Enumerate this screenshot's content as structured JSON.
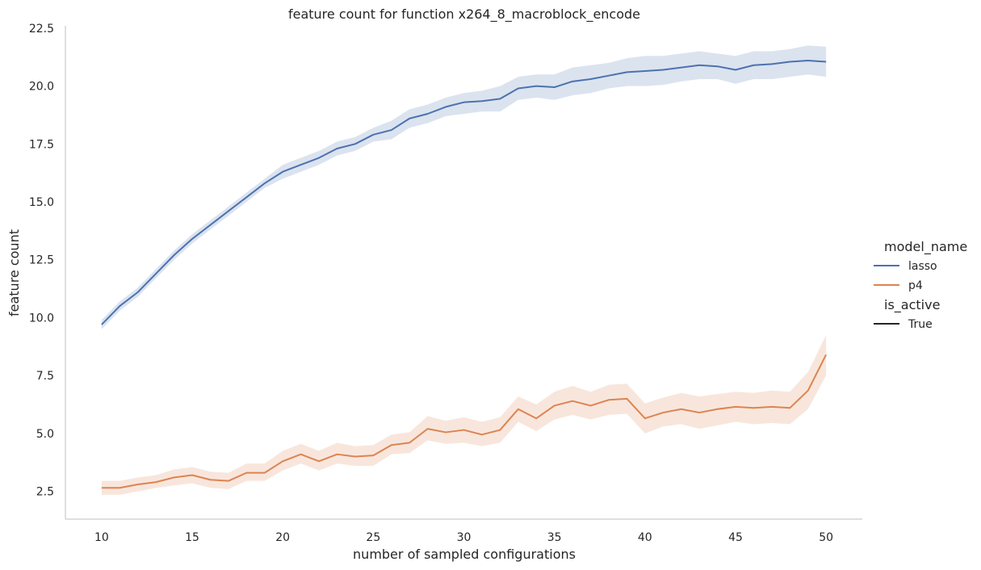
{
  "chart_data": {
    "type": "line",
    "title": "feature count for function x264_8_macroblock_encode",
    "xlabel": "number of sampled configurations",
    "ylabel": "feature count",
    "xlim": [
      8.0,
      52.0
    ],
    "ylim": [
      1.3,
      22.6
    ],
    "xticks": [
      10,
      15,
      20,
      25,
      30,
      35,
      40,
      45,
      50
    ],
    "yticks": [
      2.5,
      5.0,
      7.5,
      10.0,
      12.5,
      15.0,
      17.5,
      20.0,
      22.5
    ],
    "x": [
      10,
      11,
      12,
      13,
      14,
      15,
      16,
      17,
      18,
      19,
      20,
      21,
      22,
      23,
      24,
      25,
      26,
      27,
      28,
      29,
      30,
      31,
      32,
      33,
      34,
      35,
      36,
      37,
      38,
      39,
      40,
      41,
      42,
      43,
      44,
      45,
      46,
      47,
      48,
      49,
      50
    ],
    "grid": false,
    "legend": {
      "placement": "right",
      "groups": [
        {
          "title": "model_name",
          "entries": [
            "lasso",
            "p4"
          ]
        },
        {
          "title": "is_active",
          "entries": [
            "True"
          ]
        }
      ]
    },
    "series": [
      {
        "name": "lasso",
        "color": "#4c72b0",
        "values": [
          9.7,
          10.5,
          11.1,
          11.9,
          12.7,
          13.4,
          14.0,
          14.6,
          15.2,
          15.8,
          16.3,
          16.6,
          16.9,
          17.3,
          17.5,
          17.9,
          18.1,
          18.6,
          18.8,
          19.1,
          19.3,
          19.35,
          19.45,
          19.9,
          20.0,
          19.95,
          20.2,
          20.3,
          20.45,
          20.6,
          20.65,
          20.7,
          20.8,
          20.9,
          20.85,
          20.7,
          20.9,
          20.95,
          21.05,
          21.1,
          21.05
        ],
        "ci_lower": [
          9.5,
          10.3,
          10.9,
          11.7,
          12.5,
          13.2,
          13.8,
          14.4,
          15.0,
          15.6,
          16.0,
          16.3,
          16.6,
          17.0,
          17.2,
          17.6,
          17.7,
          18.2,
          18.4,
          18.7,
          18.8,
          18.9,
          18.9,
          19.4,
          19.5,
          19.4,
          19.6,
          19.7,
          19.9,
          20.0,
          20.0,
          20.05,
          20.2,
          20.3,
          20.3,
          20.1,
          20.3,
          20.3,
          20.4,
          20.5,
          20.4
        ],
        "ci_upper": [
          9.9,
          10.7,
          11.3,
          12.1,
          12.9,
          13.6,
          14.2,
          14.8,
          15.4,
          16.0,
          16.6,
          16.9,
          17.2,
          17.6,
          17.8,
          18.2,
          18.5,
          19.0,
          19.2,
          19.5,
          19.7,
          19.8,
          20.0,
          20.4,
          20.5,
          20.5,
          20.8,
          20.9,
          21.0,
          21.2,
          21.3,
          21.3,
          21.4,
          21.5,
          21.4,
          21.3,
          21.5,
          21.5,
          21.6,
          21.75,
          21.7
        ]
      },
      {
        "name": "p4",
        "color": "#dd8452",
        "values": [
          2.65,
          2.65,
          2.8,
          2.9,
          3.1,
          3.2,
          3.0,
          2.95,
          3.3,
          3.3,
          3.8,
          4.1,
          3.8,
          4.1,
          4.0,
          4.05,
          4.5,
          4.6,
          5.2,
          5.05,
          5.15,
          4.95,
          5.15,
          6.05,
          5.65,
          6.2,
          6.4,
          6.2,
          6.45,
          6.5,
          5.65,
          5.9,
          6.05,
          5.9,
          6.05,
          6.15,
          6.1,
          6.15,
          6.1,
          6.85,
          8.4
        ],
        "ci_lower": [
          2.35,
          2.35,
          2.5,
          2.65,
          2.75,
          2.85,
          2.65,
          2.6,
          2.95,
          2.95,
          3.4,
          3.7,
          3.4,
          3.7,
          3.6,
          3.6,
          4.1,
          4.15,
          4.7,
          4.55,
          4.6,
          4.45,
          4.6,
          5.5,
          5.1,
          5.6,
          5.8,
          5.6,
          5.8,
          5.85,
          5.0,
          5.3,
          5.4,
          5.2,
          5.35,
          5.5,
          5.4,
          5.45,
          5.4,
          6.05,
          7.5
        ],
        "ci_upper": [
          2.95,
          2.95,
          3.1,
          3.2,
          3.45,
          3.55,
          3.35,
          3.3,
          3.7,
          3.7,
          4.25,
          4.55,
          4.25,
          4.6,
          4.45,
          4.5,
          4.95,
          5.05,
          5.75,
          5.55,
          5.7,
          5.5,
          5.7,
          6.6,
          6.25,
          6.8,
          7.05,
          6.8,
          7.1,
          7.15,
          6.3,
          6.55,
          6.75,
          6.6,
          6.7,
          6.8,
          6.75,
          6.85,
          6.8,
          7.65,
          9.25
        ]
      }
    ]
  }
}
